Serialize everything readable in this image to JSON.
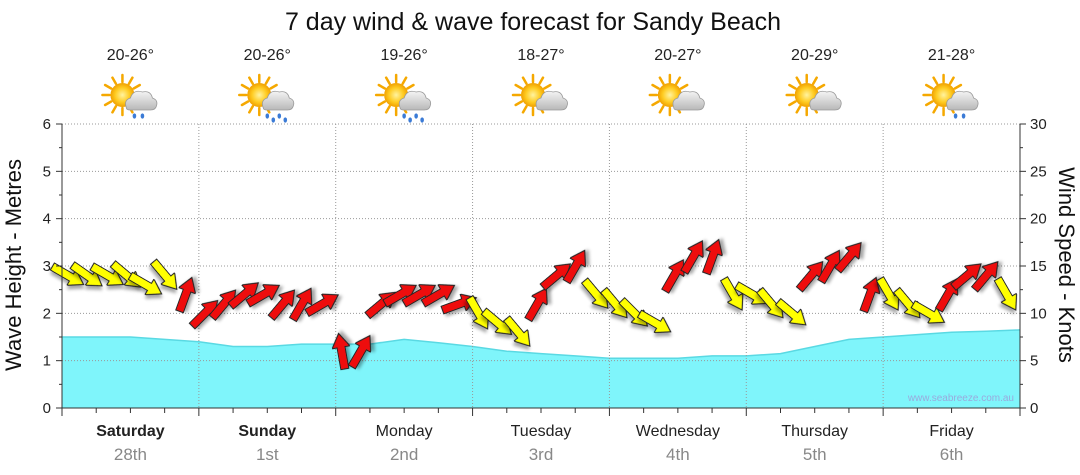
{
  "title": "7 day wind & wave forecast for Sandy Beach",
  "credit": "www.seabreeze.com.au",
  "left_axis_label": "Wave Height - Metres",
  "right_axis_label": "Wind Speed - Knots",
  "days": [
    {
      "day": "Saturday",
      "date": "28th",
      "temp": "20-26°",
      "icon": "sun-cloud-light-rain-icon",
      "bold": true
    },
    {
      "day": "Sunday",
      "date": "1st",
      "temp": "20-26°",
      "icon": "sun-cloud-rain-icon",
      "bold": true
    },
    {
      "day": "Monday",
      "date": "2nd",
      "temp": "19-26°",
      "icon": "sun-cloud-rain-icon",
      "bold": false
    },
    {
      "day": "Tuesday",
      "date": "3rd",
      "temp": "18-27°",
      "icon": "sun-cloud-icon",
      "bold": false
    },
    {
      "day": "Wednesday",
      "date": "4th",
      "temp": "20-27°",
      "icon": "sun-cloud-icon",
      "bold": false
    },
    {
      "day": "Thursday",
      "date": "5th",
      "temp": "20-29°",
      "icon": "sun-cloud-icon",
      "bold": false
    },
    {
      "day": "Friday",
      "date": "6th",
      "temp": "21-28°",
      "icon": "sun-cloud-light-rain-icon",
      "bold": false
    }
  ],
  "colors": {
    "wave_fill": "#7ff5fb",
    "wave_line": "#5ad9e3",
    "arrow_strong": "#ee1111",
    "arrow_light": "#ffff00",
    "grid": "#999999"
  },
  "chart_data": {
    "type": "area",
    "title": "7 day wind & wave forecast for Sandy Beach",
    "ylabel": "Wave Height - Metres",
    "y2label": "Wind Speed - Knots",
    "ylim": [
      0,
      6
    ],
    "y2lim": [
      0,
      30
    ],
    "yticks": [
      0,
      1,
      2,
      3,
      4,
      5,
      6
    ],
    "y2ticks": [
      0,
      5,
      10,
      15,
      20,
      25,
      30
    ],
    "grid": true,
    "categories": [
      "Saturday 28th",
      "Sunday 1st",
      "Monday 2nd",
      "Tuesday 3rd",
      "Wednesday 4th",
      "Thursday 5th",
      "Friday 6th"
    ],
    "wave_height": {
      "x_days": [
        0,
        0.5,
        1,
        1.25,
        1.5,
        1.75,
        2,
        2.25,
        2.5,
        2.75,
        3,
        3.25,
        3.5,
        3.75,
        4,
        4.25,
        4.5,
        4.75,
        5,
        5.25,
        5.5,
        5.75,
        6,
        6.25,
        6.5,
        6.75,
        7
      ],
      "metres": [
        1.5,
        1.5,
        1.4,
        1.3,
        1.3,
        1.35,
        1.35,
        1.35,
        1.45,
        1.38,
        1.3,
        1.2,
        1.15,
        1.1,
        1.05,
        1.05,
        1.05,
        1.1,
        1.1,
        1.15,
        1.3,
        1.45,
        1.5,
        1.55,
        1.6,
        1.62,
        1.65
      ]
    },
    "wind": {
      "x_days": [
        0.0,
        0.14,
        0.29,
        0.43,
        0.57,
        0.71,
        0.86,
        1.0,
        1.14,
        1.29,
        1.43,
        1.57,
        1.71,
        1.86,
        2.0,
        2.14,
        2.29,
        2.43,
        2.57,
        2.71,
        2.86,
        3.0,
        3.14,
        3.29,
        3.43,
        3.57,
        3.71,
        3.86,
        4.0,
        4.14,
        4.29,
        4.43,
        4.57,
        4.71,
        4.86,
        5.0,
        5.14,
        5.29,
        5.43,
        5.57,
        5.71,
        5.86,
        6.0,
        6.14,
        6.29,
        6.43,
        6.57,
        6.71,
        6.86
      ],
      "knots": [
        14,
        14,
        14,
        14,
        13,
        14,
        12,
        10,
        11,
        12,
        12,
        11,
        11,
        11,
        6,
        6,
        11,
        12,
        12,
        12,
        11,
        10,
        9,
        8,
        11,
        14,
        15,
        12,
        11,
        10,
        9,
        14,
        16,
        16,
        12,
        12,
        11,
        10,
        14,
        15,
        16,
        12,
        12,
        11,
        10,
        12,
        14,
        14,
        12
      ],
      "direction_deg": [
        300,
        305,
        300,
        310,
        300,
        320,
        200,
        225,
        220,
        230,
        240,
        220,
        210,
        240,
        170,
        210,
        230,
        240,
        240,
        240,
        250,
        330,
        310,
        320,
        210,
        230,
        210,
        320,
        320,
        315,
        300,
        210,
        210,
        200,
        330,
        300,
        320,
        310,
        220,
        210,
        220,
        200,
        330,
        320,
        300,
        210,
        230,
        220,
        330
      ],
      "strong_threshold_knots": 12
    }
  }
}
